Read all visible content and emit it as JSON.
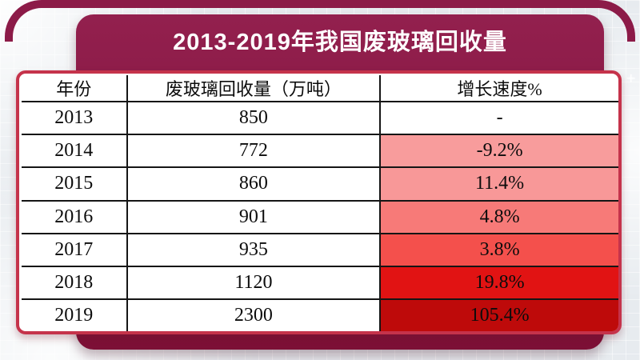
{
  "title": {
    "text": "2013-2019年我国废玻璃回收量"
  },
  "colors": {
    "banner": "#8C1B48",
    "banner_base": "#7C1036",
    "table_border": "#C5334B",
    "grid_line": "#151515",
    "background": "#E7EBEF"
  },
  "decorations": {
    "plus_mark": "+"
  },
  "table": {
    "columns": [
      "年份",
      "废玻璃回收量（万吨）",
      "增长速度%"
    ],
    "rows": [
      {
        "year": "2013",
        "volume": "850",
        "growth": "-",
        "growth_bg": "#FFFFFF"
      },
      {
        "year": "2014",
        "volume": "772",
        "growth": "-9.2%",
        "growth_bg": "#F89C9C"
      },
      {
        "year": "2015",
        "volume": "860",
        "growth": "11.4%",
        "growth_bg": "#F89898"
      },
      {
        "year": "2016",
        "volume": "901",
        "growth": "4.8%",
        "growth_bg": "#F77A78"
      },
      {
        "year": "2017",
        "volume": "935",
        "growth": "3.8%",
        "growth_bg": "#F4504C"
      },
      {
        "year": "2018",
        "volume": "1120",
        "growth": "19.8%",
        "growth_bg": "#E11313"
      },
      {
        "year": "2019",
        "volume": "2300",
        "growth": "105.4%",
        "growth_bg": "#BE0A0A"
      }
    ]
  },
  "chart_data": {
    "type": "table",
    "title": "2013-2019年我国废玻璃回收量",
    "columns": [
      "年份",
      "废玻璃回收量（万吨）",
      "增长速度%"
    ],
    "categories": [
      "2013",
      "2014",
      "2015",
      "2016",
      "2017",
      "2018",
      "2019"
    ],
    "series": [
      {
        "name": "废玻璃回收量（万吨）",
        "values": [
          850,
          772,
          860,
          901,
          935,
          1120,
          2300
        ]
      },
      {
        "name": "增长速度%",
        "values": [
          null,
          -9.2,
          11.4,
          4.8,
          3.8,
          19.8,
          105.4
        ]
      }
    ],
    "layout_hints": {
      "growth_cells_colored": true,
      "color_scale": [
        "#F89C9C",
        "#BE0A0A"
      ],
      "legend_position": "none",
      "grid": true
    }
  }
}
